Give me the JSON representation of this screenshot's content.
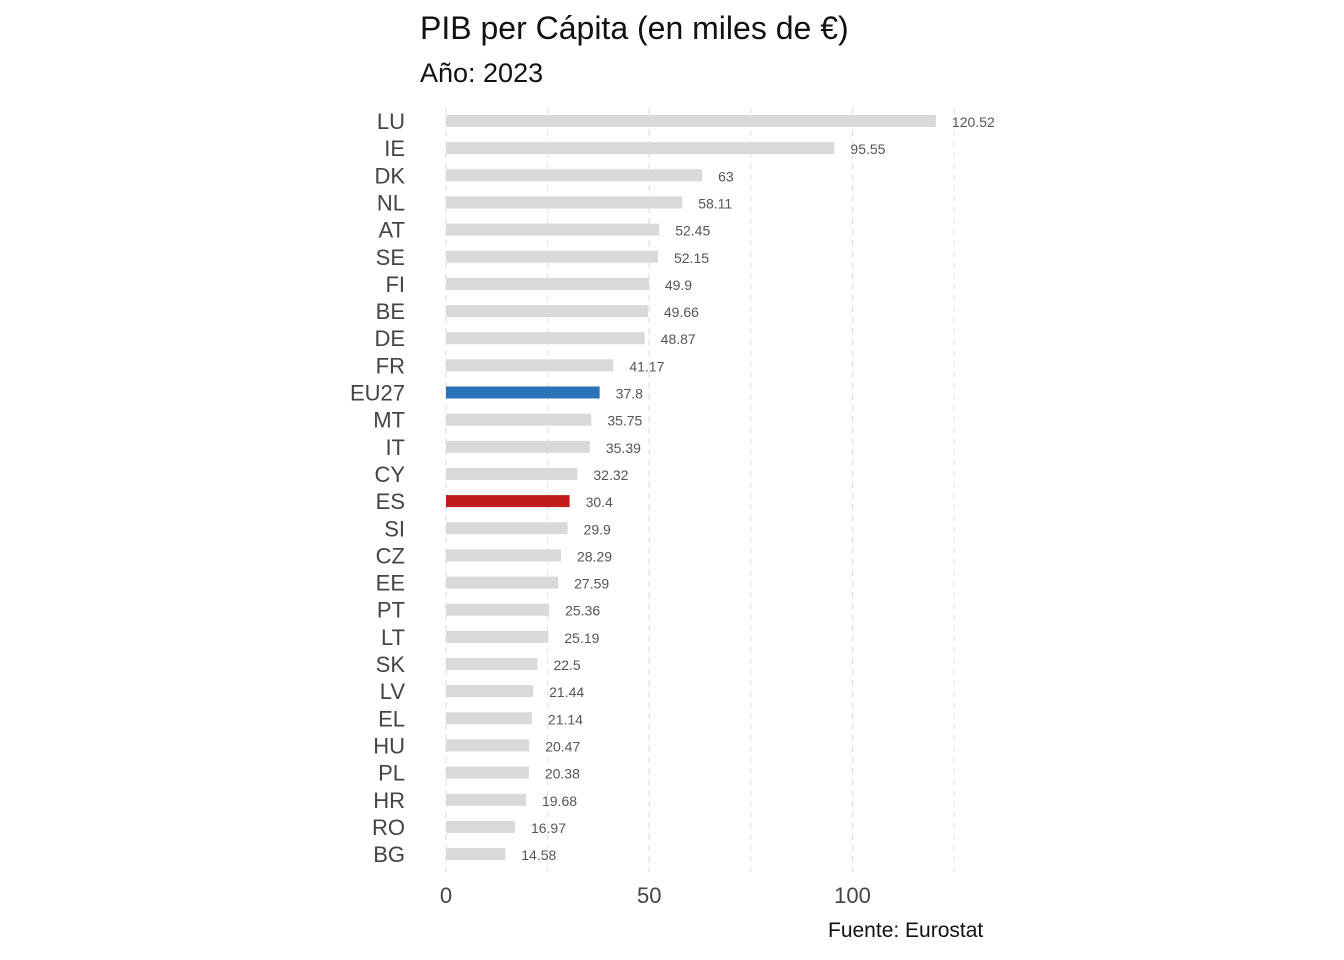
{
  "chart_data": {
    "type": "bar",
    "orientation": "horizontal",
    "title": "PIB per Cápita (en miles de €)",
    "subtitle": "Año: 2023",
    "caption": "Fuente: Eurostat",
    "categories": [
      "LU",
      "IE",
      "DK",
      "NL",
      "AT",
      "SE",
      "FI",
      "BE",
      "DE",
      "FR",
      "EU27",
      "MT",
      "IT",
      "CY",
      "ES",
      "SI",
      "CZ",
      "EE",
      "PT",
      "LT",
      "SK",
      "LV",
      "EL",
      "HU",
      "PL",
      "HR",
      "RO",
      "BG"
    ],
    "values": [
      120.52,
      95.55,
      63,
      58.11,
      52.45,
      52.15,
      49.9,
      49.66,
      48.87,
      41.17,
      37.8,
      35.75,
      35.39,
      32.32,
      30.4,
      29.9,
      28.29,
      27.59,
      25.36,
      25.19,
      22.5,
      21.44,
      21.14,
      20.47,
      20.38,
      19.68,
      16.97,
      14.58
    ],
    "value_labels": [
      "120.52",
      "95.55",
      "63",
      "58.11",
      "52.45",
      "52.15",
      "49.9",
      "49.66",
      "48.87",
      "41.17",
      "37.8",
      "35.75",
      "35.39",
      "32.32",
      "30.4",
      "29.9",
      "28.29",
      "27.59",
      "25.36",
      "25.19",
      "22.5",
      "21.44",
      "21.14",
      "20.47",
      "20.38",
      "19.68",
      "16.97",
      "14.58"
    ],
    "xlim": [
      0,
      125
    ],
    "xticks": [
      0,
      50,
      100
    ],
    "xtick_labels": [
      "0",
      "50",
      "100"
    ],
    "grid": "vertical dashed",
    "colors": {
      "default": "#d9d9d9",
      "highlight": {
        "EU27": "#2b72b8",
        "ES": "#c01c1c"
      },
      "grid": "#e3e3e3"
    }
  }
}
